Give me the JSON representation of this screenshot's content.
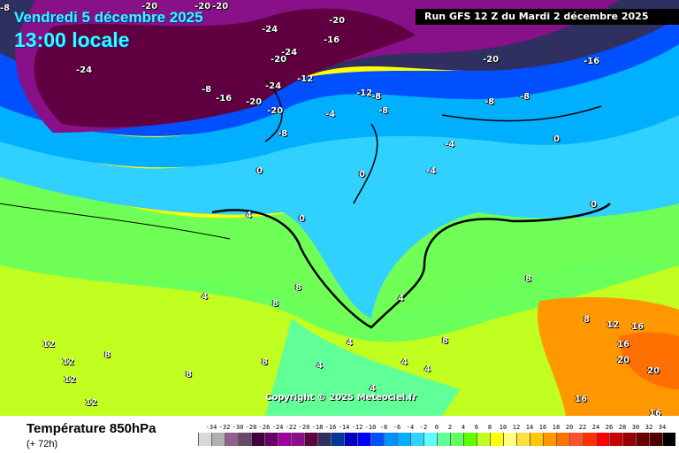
{
  "header": {
    "date": "Vendredi 5 décembre 2025",
    "time": "13:00 locale",
    "run": "Run GFS 12 Z du Mardi 2 décembre 2025"
  },
  "copyright": "Copyright © 2025 Meteociel.fr",
  "footer": {
    "title": "Température 850hPa",
    "lead": "(+ 72h)"
  },
  "legend": {
    "unit_labels": [
      "-34",
      "-32",
      "-30",
      "-28",
      "-26",
      "-24",
      "-22",
      "-20",
      "-18",
      "-16",
      "-14",
      "-12",
      "-10",
      "-8",
      "-6",
      "-4",
      "-2",
      "0",
      "2",
      "4",
      "6",
      "8",
      "10",
      "12",
      "14",
      "16",
      "18",
      "20",
      "22",
      "24",
      "26",
      "28",
      "30",
      "32",
      "34"
    ],
    "colors": [
      "#d8d8d8",
      "#b0b0b0",
      "#906090",
      "#684868",
      "#400040",
      "#680068",
      "#a000a0",
      "#881088",
      "#600040",
      "#303060",
      "#003898",
      "#0000c8",
      "#0000ff",
      "#0050ff",
      "#0090ff",
      "#00b0ff",
      "#30d0ff",
      "#60ffff",
      "#60ff98",
      "#60ff60",
      "#60ff00",
      "#c0ff20",
      "#ffff00",
      "#ffff80",
      "#ffe040",
      "#ffc800",
      "#ff9800",
      "#ff7000",
      "#ff5030",
      "#ff3000",
      "#ff0000",
      "#c80000",
      "#980000",
      "#680000",
      "#500000",
      "#000000"
    ]
  },
  "isotherm_labels": [
    "-20",
    "-20",
    "-20",
    "-24",
    "-16",
    "-20",
    "-8",
    "-24",
    "-20",
    "-24",
    "-16",
    "-20",
    "-12",
    "-24",
    "-8",
    "-16",
    "-20",
    "-20",
    "-8",
    "-12",
    "-8",
    "-8",
    "-8",
    "-4",
    "-4",
    "-8",
    "0",
    "0",
    "-4",
    "0",
    "0",
    "4",
    "0",
    "4",
    "8",
    "4",
    "8",
    "8",
    "12",
    "8",
    "8",
    "12",
    "12",
    "12",
    "8",
    "4",
    "4",
    "4",
    "4",
    "4",
    "8",
    "8",
    "12",
    "16",
    "16",
    "20",
    "20",
    "16",
    "16"
  ]
}
